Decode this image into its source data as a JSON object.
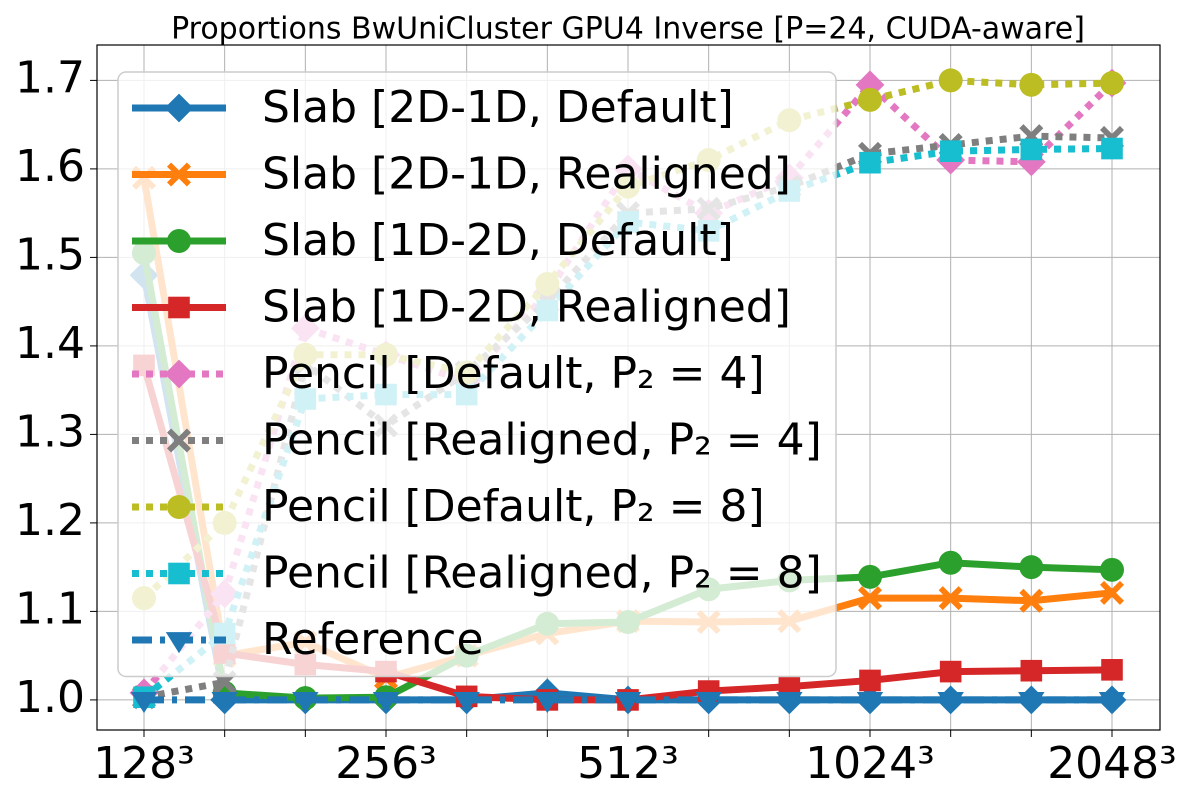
{
  "chart_data": {
    "type": "line",
    "title": "Proportions BwUniCluster GPU4 Inverse [P=24, CUDA-aware]",
    "categories": [
      "128³",
      null,
      null,
      "256³",
      null,
      null,
      "512³",
      null,
      null,
      "1024³",
      null,
      null,
      "2048³"
    ],
    "ylim": [
      0.966,
      1.74
    ],
    "yticks": [
      {
        "value": 1.0,
        "label": "1.0"
      },
      1.1,
      1.2,
      1.3,
      1.4,
      1.5,
      1.6,
      1.7
    ],
    "grid": true,
    "legend": "upper left",
    "series": [
      {
        "name": "Slab [2D-1D, Default]",
        "color": "#1f77b4",
        "marker": "diamond",
        "linestyle": "solid",
        "values": [
          1.48,
          1.0,
          1.0,
          1.0,
          1.0,
          1.008,
          1.0,
          1.0,
          1.0,
          1.0,
          1.0,
          1.0,
          1.0
        ]
      },
      {
        "name": "Slab [2D-1D, Realigned]",
        "color": "#ff7f0e",
        "marker": "x",
        "linestyle": "solid",
        "values": [
          1.59,
          1.05,
          1.065,
          1.025,
          1.05,
          1.075,
          1.089,
          1.088,
          1.089,
          1.115,
          1.115,
          1.112,
          1.121
        ]
      },
      {
        "name": "Slab [1D-2D, Default]",
        "color": "#2ca02c",
        "marker": "circle",
        "linestyle": "solid",
        "values": [
          1.505,
          1.008,
          1.002,
          1.003,
          1.05,
          1.086,
          1.088,
          1.125,
          1.135,
          1.139,
          1.155,
          1.15,
          1.147
        ]
      },
      {
        "name": "Slab [1D-2D, Realigned]",
        "color": "#d62728",
        "marker": "square",
        "linestyle": "solid",
        "values": [
          1.378,
          1.053,
          1.04,
          1.032,
          1.004,
          1.0,
          1.0,
          1.01,
          1.015,
          1.022,
          1.032,
          1.033,
          1.034
        ]
      },
      {
        "name": "Pencil [Default, P₂ = 4]",
        "color": "#e377c2",
        "marker": "diamond",
        "linestyle": "dotted",
        "values": [
          1.008,
          1.12,
          1.42,
          1.39,
          1.36,
          1.46,
          1.6,
          1.55,
          1.59,
          1.695,
          1.61,
          1.608,
          1.697
        ]
      },
      {
        "name": "Pencil [Realigned, P₂ = 4]",
        "color": "#7f7f7f",
        "marker": "x",
        "linestyle": "dotted",
        "values": [
          1.003,
          1.02,
          1.38,
          1.31,
          1.37,
          1.45,
          1.55,
          1.555,
          1.58,
          1.617,
          1.627,
          1.637,
          1.635
        ]
      },
      {
        "name": "Pencil [Default, P₂ = 8]",
        "color": "#bcbd22",
        "marker": "circle",
        "linestyle": "dotted",
        "values": [
          1.115,
          1.2,
          1.39,
          1.39,
          1.37,
          1.47,
          1.58,
          1.61,
          1.655,
          1.678,
          1.7,
          1.695,
          1.697
        ]
      },
      {
        "name": "Pencil [Realigned, P₂ = 8]",
        "color": "#17becf",
        "marker": "square",
        "linestyle": "dotted",
        "values": [
          1.003,
          1.075,
          1.34,
          1.345,
          1.345,
          1.44,
          1.54,
          1.53,
          1.575,
          1.607,
          1.62,
          1.622,
          1.623
        ]
      },
      {
        "name": "Reference",
        "color": "#1f77b4",
        "marker": "triangle-down",
        "linestyle": "dashdot",
        "values": [
          1.0,
          1.0,
          1.0,
          1.0,
          1.0,
          1.0,
          1.0,
          1.0,
          1.0,
          1.0,
          1.0,
          1.0,
          1.0
        ]
      }
    ]
  }
}
